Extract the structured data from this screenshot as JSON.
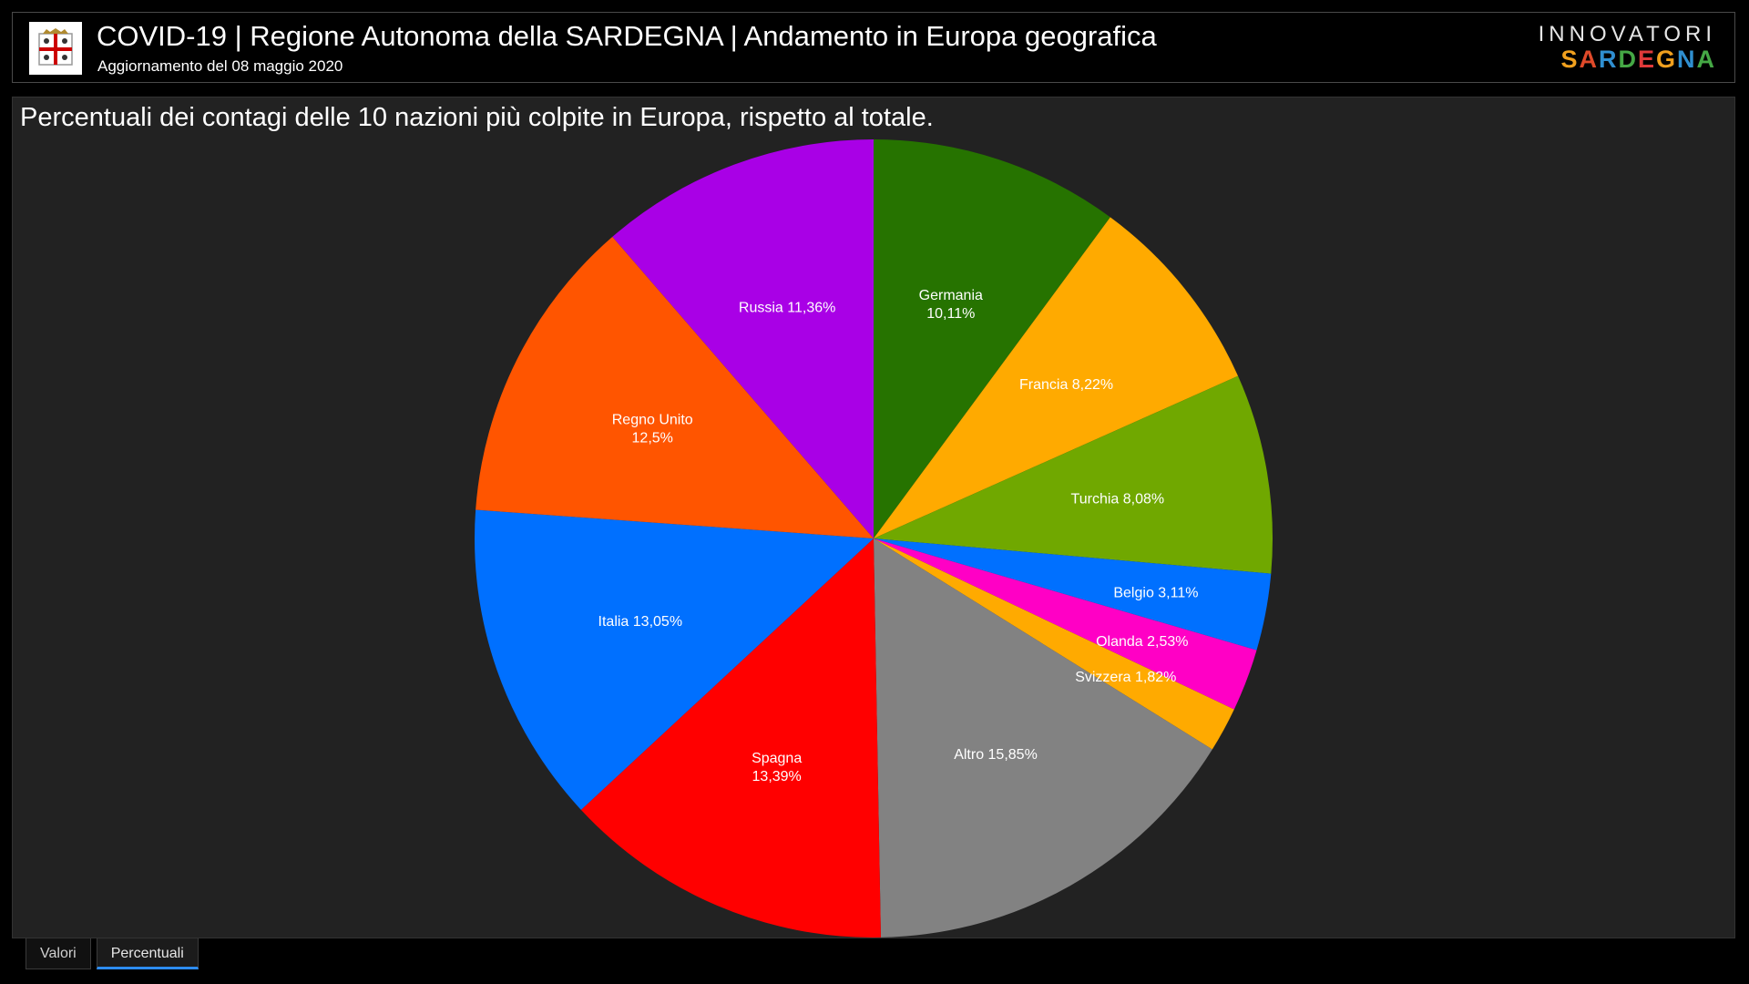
{
  "header": {
    "title": "COVID-19 | Regione Autonoma della SARDEGNA | Andamento in Europa geografica",
    "subtitle": "Aggiornamento del 08 maggio 2020",
    "brand_top": "INNOVATORI",
    "brand_bottom_letters": [
      "S",
      "A",
      "R",
      "D",
      "E",
      "G",
      "N",
      "A"
    ],
    "brand_colors": [
      "#f0a01e",
      "#e04a2a",
      "#2f8fd0",
      "#45a845",
      "#e03a3a",
      "#f0a01e",
      "#2f8fd0",
      "#45a845"
    ]
  },
  "chart_data": {
    "type": "pie",
    "title": "Percentuali dei contagi delle 10 nazioni più colpite in Europa, rispetto al totale.",
    "slices": [
      {
        "label": "Germania",
        "value_label": "10,11%",
        "value": 10.11,
        "color": "#267300"
      },
      {
        "label": "Francia",
        "value_label": "8,22%",
        "value": 8.22,
        "color": "#ffaa00"
      },
      {
        "label": "Turchia",
        "value_label": "8,08%",
        "value": 8.08,
        "color": "#70a800"
      },
      {
        "label": "Belgio",
        "value_label": "3,11%",
        "value": 3.11,
        "color": "#0070ff"
      },
      {
        "label": "Olanda",
        "value_label": "2,53%",
        "value": 2.53,
        "color": "#ff00c5"
      },
      {
        "label": "Svizzera",
        "value_label": "1,82%",
        "value": 1.82,
        "color": "#ffaa00"
      },
      {
        "label": "Altro",
        "value_label": "15,85%",
        "value": 15.85,
        "color": "#828282"
      },
      {
        "label": "Spagna",
        "value_label": "13,39%",
        "value": 13.39,
        "color": "#ff0000"
      },
      {
        "label": "Italia",
        "value_label": "13,05%",
        "value": 13.05,
        "color": "#0070ff"
      },
      {
        "label": "Regno Unito",
        "value_label": "12,5%",
        "value": 12.5,
        "color": "#ff5500"
      },
      {
        "label": "Russia",
        "value_label": "11,36%",
        "value": 11.36,
        "color": "#a900e6"
      }
    ]
  },
  "tabs": [
    {
      "label": "Valori",
      "active": false
    },
    {
      "label": "Percentuali",
      "active": true
    }
  ]
}
